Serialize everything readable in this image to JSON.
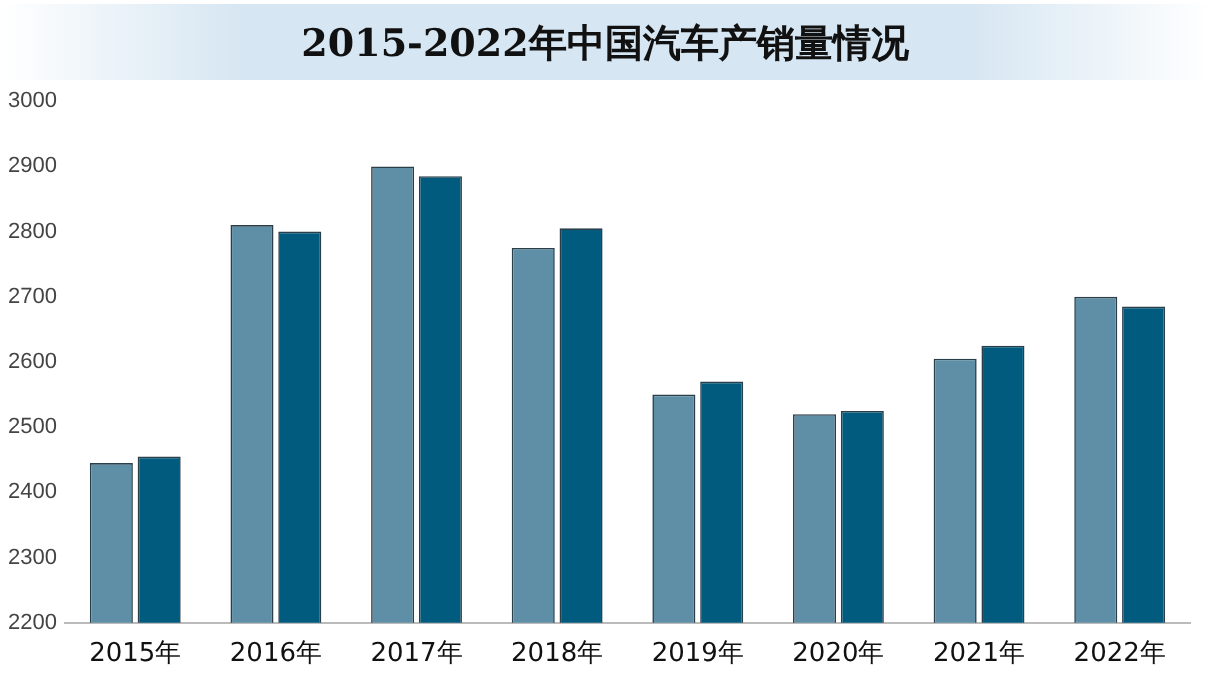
{
  "chart_data": {
    "type": "bar",
    "title": "2015-2022年中国汽车产销量情况",
    "categories": [
      "2015年",
      "2016年",
      "2017年",
      "2018年",
      "2019年",
      "2020年",
      "2021年",
      "2022年"
    ],
    "series": [
      {
        "color": "#5e8fa6",
        "values": [
          2445,
          2810,
          2900,
          2775,
          2550,
          2520,
          2605,
          2700
        ]
      },
      {
        "color": "#005b7f",
        "values": [
          2455,
          2800,
          2885,
          2805,
          2570,
          2525,
          2625,
          2685
        ]
      }
    ],
    "ylim": [
      2200,
      3000
    ],
    "yticks": [
      2200,
      2300,
      2400,
      2500,
      2600,
      2700,
      2800,
      2900,
      3000
    ],
    "grid": false,
    "legend": false
  }
}
